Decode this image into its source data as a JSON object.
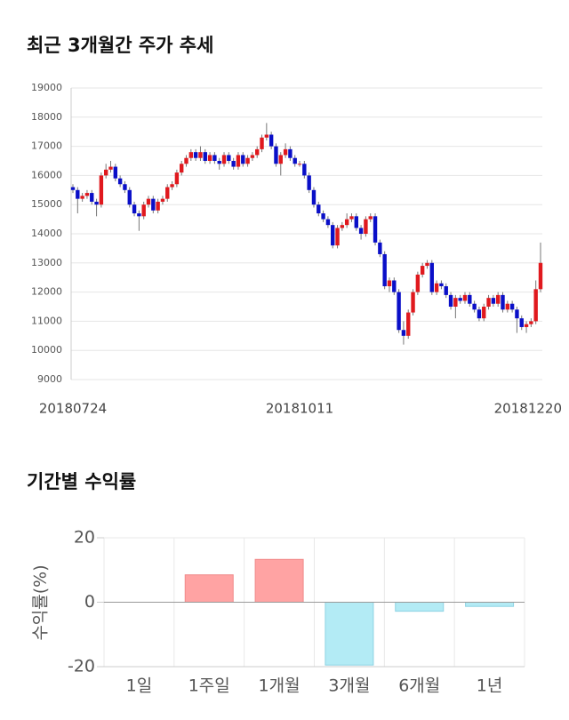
{
  "chart_data": [
    {
      "type": "candlestick",
      "title": "최근 3개월간 주가 추세",
      "categories": [
        "20180724",
        null,
        null,
        null,
        null,
        null,
        null,
        null,
        null,
        null,
        null,
        null,
        null,
        null,
        null,
        null,
        null,
        null,
        null,
        null,
        null,
        null,
        null,
        null,
        null,
        null,
        null,
        null,
        null,
        null,
        null,
        null,
        null,
        null,
        null,
        null,
        null,
        null,
        null,
        null,
        null,
        null,
        null,
        null,
        null,
        null,
        null,
        null,
        "20181011",
        null,
        null,
        null,
        null,
        null,
        null,
        null,
        null,
        null,
        null,
        null,
        null,
        null,
        null,
        null,
        null,
        null,
        null,
        null,
        null,
        null,
        null,
        null,
        null,
        null,
        null,
        null,
        null,
        null,
        null,
        null,
        null,
        null,
        null,
        null,
        null,
        null,
        null,
        null,
        null,
        null,
        null,
        null,
        null,
        null,
        null,
        null,
        null,
        null,
        null,
        "20181220"
      ],
      "open": [
        15600,
        15500,
        15200,
        15300,
        15400,
        15100,
        15000,
        16000,
        16200,
        16300,
        15900,
        15700,
        15500,
        15000,
        14700,
        14600,
        15000,
        15200,
        14800,
        15100,
        15200,
        15600,
        15700,
        16100,
        16400,
        16600,
        16800,
        16600,
        16800,
        16500,
        16700,
        16500,
        16400,
        16700,
        16500,
        16300,
        16700,
        16400,
        16600,
        16700,
        16900,
        17300,
        17400,
        17000,
        16400,
        16700,
        16900,
        16600,
        16400,
        16400,
        16000,
        15500,
        15000,
        14700,
        14500,
        14300,
        13600,
        14200,
        14300,
        14500,
        14600,
        14200,
        14000,
        14500,
        14600,
        13700,
        13300,
        12200,
        12400,
        12000,
        10700,
        10500,
        11300,
        12000,
        12600,
        12900,
        13000,
        12000,
        12300,
        12200,
        11900,
        11500,
        11800,
        11700,
        11900,
        11600,
        11400,
        11100,
        11500,
        11800,
        11600,
        11900,
        11400,
        11600,
        11400,
        11100,
        10800,
        10900,
        11000,
        12100
      ],
      "high": [
        15700,
        15600,
        15400,
        15500,
        15500,
        15200,
        16100,
        16400,
        16500,
        16400,
        16000,
        15800,
        15600,
        15100,
        14800,
        15100,
        15300,
        15300,
        15200,
        15300,
        15700,
        15800,
        16200,
        16500,
        16700,
        16900,
        16900,
        17000,
        16900,
        16800,
        16800,
        16600,
        16800,
        16800,
        16600,
        16800,
        16800,
        16700,
        16800,
        17000,
        17400,
        17800,
        17500,
        17100,
        16800,
        17100,
        17000,
        16700,
        16500,
        16500,
        16100,
        15600,
        15100,
        14800,
        14600,
        14400,
        14300,
        14400,
        14700,
        14700,
        14700,
        14300,
        14600,
        14700,
        14700,
        13800,
        13400,
        12500,
        12500,
        12100,
        11000,
        11400,
        12100,
        12700,
        13000,
        13100,
        13100,
        12400,
        12400,
        12300,
        12000,
        11900,
        11900,
        12000,
        12000,
        11700,
        11500,
        11600,
        11900,
        11900,
        12000,
        12000,
        11700,
        11700,
        11500,
        11200,
        11000,
        11100,
        12400,
        13700
      ],
      "low": [
        15400,
        14700,
        15100,
        15200,
        15000,
        14600,
        14900,
        15900,
        16100,
        15800,
        15600,
        15400,
        14900,
        14600,
        14100,
        14500,
        14900,
        14700,
        14700,
        15000,
        15100,
        15500,
        15600,
        16000,
        16300,
        16500,
        16500,
        16500,
        16400,
        16400,
        16400,
        16200,
        16300,
        16400,
        16200,
        16200,
        16300,
        16300,
        16500,
        16600,
        16800,
        17200,
        16900,
        16300,
        16000,
        16600,
        16500,
        16300,
        16300,
        15900,
        15400,
        14900,
        14600,
        14400,
        14200,
        13500,
        13500,
        14100,
        14200,
        14400,
        14100,
        13800,
        13900,
        14400,
        13600,
        13200,
        12100,
        12000,
        11900,
        10600,
        10200,
        10400,
        11200,
        11900,
        12500,
        12800,
        11900,
        11900,
        12100,
        11800,
        11400,
        11100,
        11600,
        11600,
        11500,
        11300,
        11000,
        11000,
        11400,
        11500,
        11500,
        11300,
        11300,
        11300,
        10600,
        10700,
        10600,
        10800,
        10900,
        12000
      ],
      "close": [
        15500,
        15200,
        15300,
        15400,
        15100,
        15000,
        16000,
        16200,
        16300,
        15900,
        15700,
        15500,
        15000,
        14700,
        14600,
        15000,
        15200,
        14800,
        15100,
        15200,
        15600,
        15700,
        16100,
        16400,
        16600,
        16800,
        16600,
        16800,
        16500,
        16700,
        16500,
        16400,
        16700,
        16500,
        16300,
        16700,
        16400,
        16600,
        16700,
        16900,
        17300,
        17400,
        17000,
        16400,
        16700,
        16900,
        16600,
        16400,
        16400,
        16000,
        15500,
        15000,
        14700,
        14500,
        14300,
        13600,
        14200,
        14300,
        14500,
        14600,
        14200,
        14000,
        14500,
        14600,
        13700,
        13300,
        12200,
        12400,
        12000,
        10700,
        10500,
        11300,
        12000,
        12600,
        12900,
        13000,
        12000,
        12300,
        12200,
        11900,
        11500,
        11800,
        11700,
        11900,
        11600,
        11400,
        11100,
        11500,
        11800,
        11600,
        11900,
        11400,
        11600,
        11400,
        11100,
        10800,
        10900,
        11000,
        12100,
        13000
      ],
      "up_color": "#e0191e",
      "down_color": "#0a0fc8",
      "ylim": [
        9000,
        19000
      ],
      "yticks": [
        9000,
        10000,
        11000,
        12000,
        13000,
        14000,
        15000,
        16000,
        17000,
        18000,
        19000
      ],
      "grid": true
    },
    {
      "type": "bar",
      "title": "기간별 수익률",
      "ylabel": "수익률(%)",
      "categories": [
        "1일",
        "1주일",
        "1개월",
        "3개월",
        "6개월",
        "1년"
      ],
      "values": [
        0,
        8.5,
        13.3,
        -19.5,
        -2.8,
        -1.3
      ],
      "positive_color": "#ffa3a3",
      "negative_color": "#b3ebf5",
      "ylim": [
        -20,
        20
      ],
      "yticks": [
        -20,
        0,
        20
      ],
      "grid": true
    }
  ]
}
